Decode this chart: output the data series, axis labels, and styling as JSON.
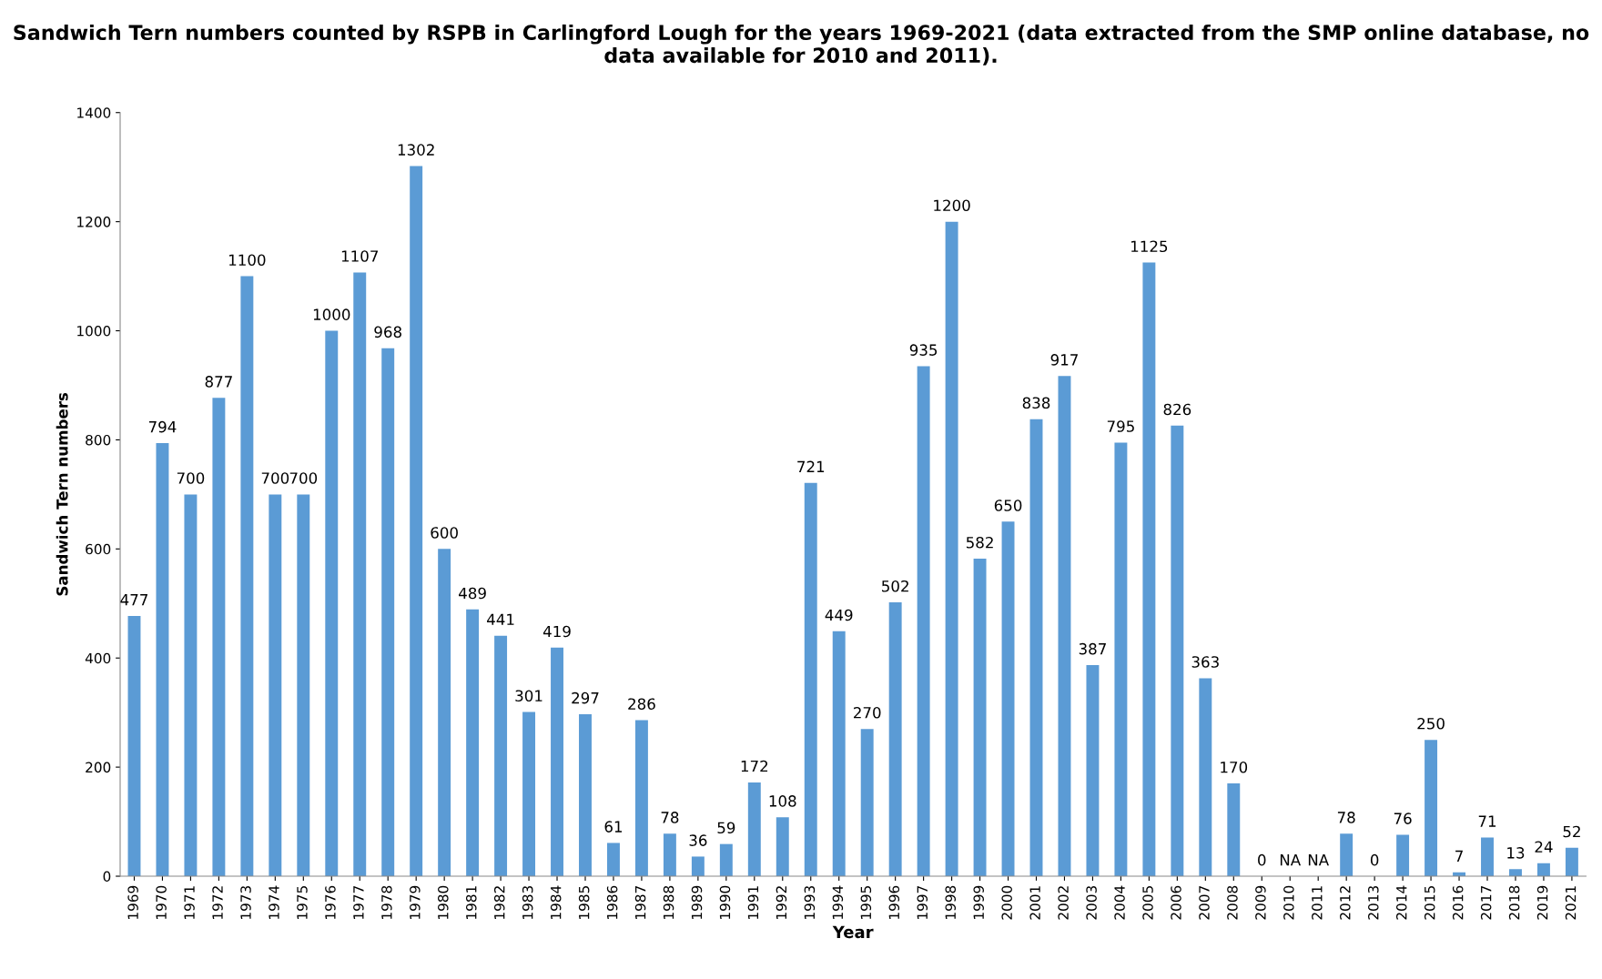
{
  "chart_data": {
    "type": "bar",
    "title": "Sandwich Tern numbers counted by RSPB in Carlingford Lough for the years 1969-2021 (data extracted from the SMP online database, no data available for 2010 and 2011).",
    "xlabel": "Year",
    "ylabel": "Sandwich Tern numbers",
    "categories": [
      "1969",
      "1970",
      "1971",
      "1972",
      "1973",
      "1974",
      "1975",
      "1976",
      "1977",
      "1978",
      "1979",
      "1980",
      "1981",
      "1982",
      "1983",
      "1984",
      "1985",
      "1986",
      "1987",
      "1988",
      "1989",
      "1990",
      "1991",
      "1992",
      "1993",
      "1994",
      "1995",
      "1996",
      "1997",
      "1998",
      "1999",
      "2000",
      "2001",
      "2002",
      "2003",
      "2004",
      "2005",
      "2006",
      "2007",
      "2008",
      "2009",
      "2010",
      "2011",
      "2012",
      "2013",
      "2014",
      "2015",
      "2016",
      "2017",
      "2018",
      "2019",
      "2021"
    ],
    "values": [
      477,
      794,
      700,
      877,
      1100,
      700,
      700,
      1000,
      1107,
      968,
      1302,
      600,
      489,
      441,
      301,
      419,
      297,
      61,
      286,
      78,
      36,
      59,
      172,
      108,
      721,
      449,
      270,
      502,
      935,
      1200,
      582,
      650,
      838,
      917,
      387,
      795,
      1125,
      826,
      363,
      170,
      0,
      null,
      null,
      78,
      0,
      76,
      250,
      7,
      71,
      13,
      24,
      52
    ],
    "value_labels": [
      "477",
      "794",
      "700",
      "877",
      "1100",
      "700",
      "700",
      "1000",
      "1107",
      "968",
      "1302",
      "600",
      "489",
      "441",
      "301",
      "419",
      "297",
      "61",
      "286",
      "78",
      "36",
      "59",
      "172",
      "108",
      "721",
      "449",
      "270",
      "502",
      "935",
      "1200",
      "582",
      "650",
      "838",
      "917",
      "387",
      "795",
      "1125",
      "826",
      "363",
      "170",
      "0",
      "NA",
      "NA",
      "78",
      "0",
      "76",
      "250",
      "7",
      "71",
      "13",
      "24",
      "52"
    ],
    "color": "#5b9bd5",
    "ylim": [
      0,
      1400
    ],
    "yticks": [
      0,
      200,
      400,
      600,
      800,
      1000,
      1200,
      1400
    ],
    "grid": false
  }
}
